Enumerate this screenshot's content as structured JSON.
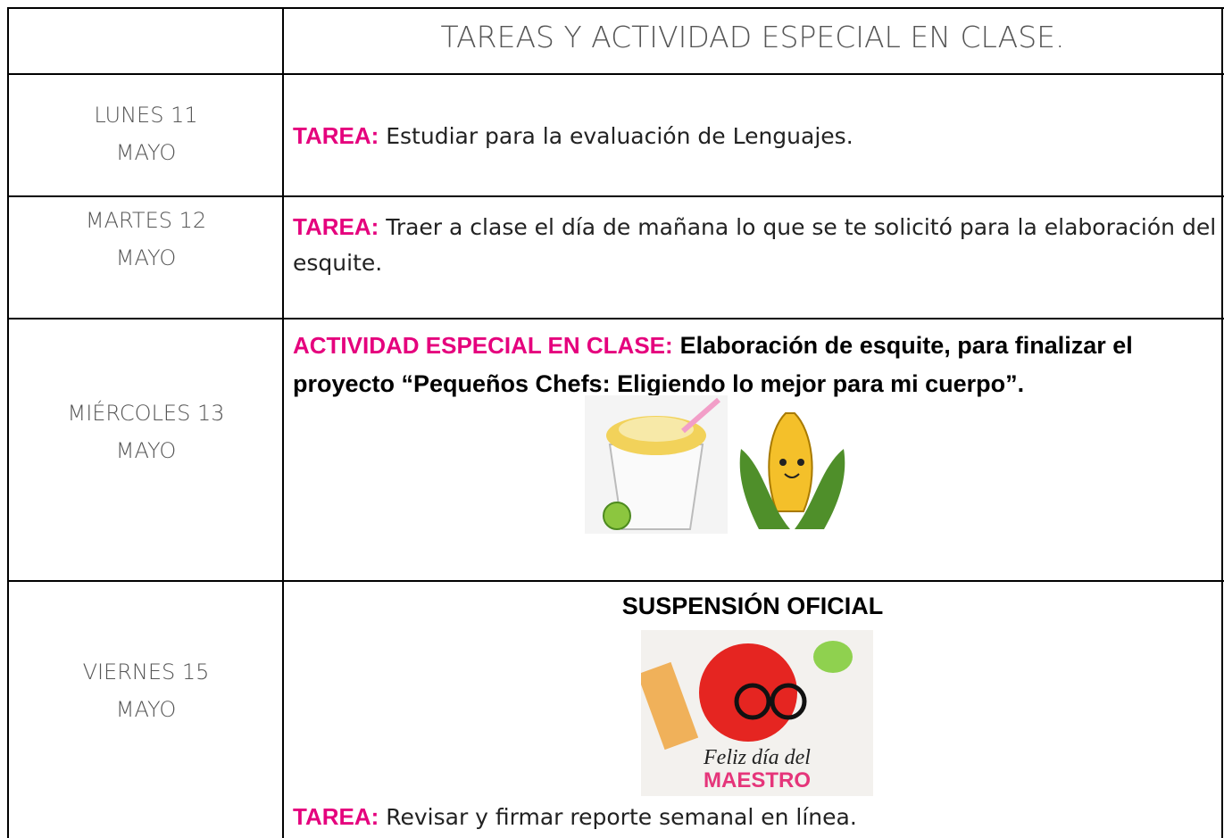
{
  "header": {
    "title": "TAREAS Y ACTIVIDAD ESPECIAL EN CLASE."
  },
  "rows": [
    {
      "day": [
        "LUNES 11",
        "MAYO"
      ],
      "label": "TAREA:",
      "text": "Estudiar para la evaluación de Lenguajes."
    },
    {
      "day": [
        "MARTES 12",
        "MAYO"
      ],
      "label": "TAREA:",
      "text": "Traer a clase el día de mañana lo que se te solicitó para la elaboración del esquite."
    },
    {
      "day": [
        "MIÉRCOLES 13",
        "MAYO"
      ],
      "label": "ACTIVIDAD ESPECIAL EN CLASE:",
      "text": "Elaboración de esquite, para finalizar el proyecto “Pequeños Chefs: Eligiendo lo mejor para mi cuerpo”."
    },
    {
      "day": [
        "VIERNES 15",
        "MAYO"
      ],
      "heading": "SUSPENSIÓN OFICIAL",
      "image_text": [
        "Feliz día del",
        "MAESTRO"
      ],
      "label": "TAREA:",
      "text": "Revisar y firmar reporte semanal en línea."
    }
  ]
}
